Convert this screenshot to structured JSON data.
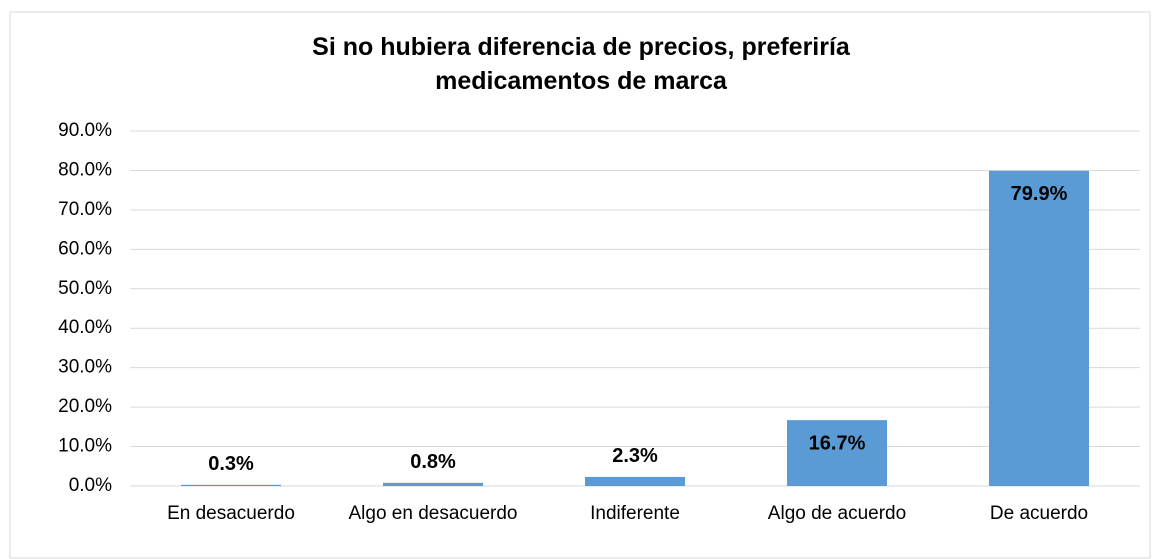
{
  "chart_data": {
    "type": "bar",
    "title": "Si no hubiera diferencia de precios, preferiría medicamentos de marca",
    "categories": [
      "En desacuerdo",
      "Algo en desacuerdo",
      "Indiferente",
      "Algo de acuerdo",
      "De acuerdo"
    ],
    "values": [
      0.3,
      0.8,
      2.3,
      16.7,
      79.9
    ],
    "value_labels": [
      "0.3%",
      "0.8%",
      "2.3%",
      "16.7%",
      "79.9%"
    ],
    "color": "#5b9bd5",
    "ylim": [
      0,
      90
    ],
    "yticks": [
      {
        "value": 0,
        "label": "0.0%"
      },
      {
        "value": 10,
        "label": "10.0%"
      },
      {
        "value": 20,
        "label": "20.0%"
      },
      {
        "value": 30,
        "label": "30.0%"
      },
      {
        "value": 40,
        "label": "40.0%"
      },
      {
        "value": 50,
        "label": "50.0%"
      },
      {
        "value": 60,
        "label": "60.0%"
      },
      {
        "value": 70,
        "label": "70.0%"
      },
      {
        "value": 80,
        "label": "80.0%"
      },
      {
        "value": 90,
        "label": "90.0%"
      }
    ],
    "grid": true
  }
}
